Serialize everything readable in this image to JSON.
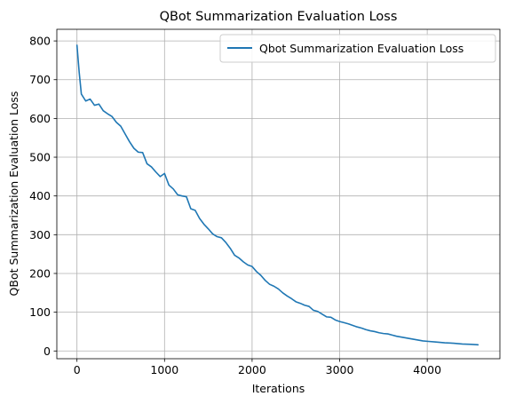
{
  "chart_data": {
    "type": "line",
    "title": "QBot Summarization Evaluation Loss",
    "xlabel": "Iterations",
    "ylabel": "QBot Summarization Evaluation Loss",
    "xlim": [
      -230,
      4830
    ],
    "ylim": [
      -20,
      830
    ],
    "xticks": [
      0,
      1000,
      2000,
      3000,
      4000
    ],
    "yticks": [
      0,
      100,
      200,
      300,
      400,
      500,
      600,
      700,
      800
    ],
    "grid": true,
    "legend_position": "top-right",
    "series": [
      {
        "name": "Qbot Summarization Evaluation Loss",
        "color": "#1f77b4",
        "x": [
          0,
          25,
          50,
          100,
          150,
          200,
          250,
          300,
          350,
          400,
          450,
          500,
          550,
          600,
          650,
          700,
          750,
          800,
          850,
          900,
          950,
          1000,
          1050,
          1100,
          1150,
          1200,
          1250,
          1300,
          1350,
          1400,
          1450,
          1500,
          1550,
          1600,
          1650,
          1700,
          1750,
          1800,
          1850,
          1900,
          1950,
          2000,
          2050,
          2100,
          2150,
          2200,
          2250,
          2300,
          2350,
          2400,
          2450,
          2500,
          2550,
          2600,
          2650,
          2700,
          2750,
          2800,
          2850,
          2900,
          2950,
          3000,
          3050,
          3100,
          3150,
          3200,
          3250,
          3300,
          3350,
          3400,
          3450,
          3500,
          3550,
          3600,
          3650,
          3700,
          3750,
          3800,
          3850,
          3900,
          3950,
          4000,
          4100,
          4200,
          4300,
          4400,
          4500,
          4580
        ],
        "values": [
          789,
          720,
          663,
          645,
          650,
          634,
          637,
          620,
          612,
          605,
          590,
          580,
          560,
          540,
          523,
          513,
          512,
          483,
          475,
          462,
          450,
          458,
          428,
          418,
          403,
          400,
          398,
          367,
          363,
          342,
          327,
          315,
          302,
          295,
          292,
          280,
          265,
          247,
          240,
          230,
          222,
          218,
          205,
          195,
          182,
          172,
          167,
          160,
          150,
          142,
          135,
          127,
          123,
          118,
          115,
          105,
          102,
          95,
          88,
          87,
          80,
          76,
          73,
          70,
          66,
          62,
          59,
          55,
          52,
          50,
          47,
          45,
          44,
          41,
          38,
          36,
          34,
          32,
          30,
          28,
          26,
          25,
          23,
          21,
          20,
          18,
          17,
          16
        ]
      }
    ]
  }
}
